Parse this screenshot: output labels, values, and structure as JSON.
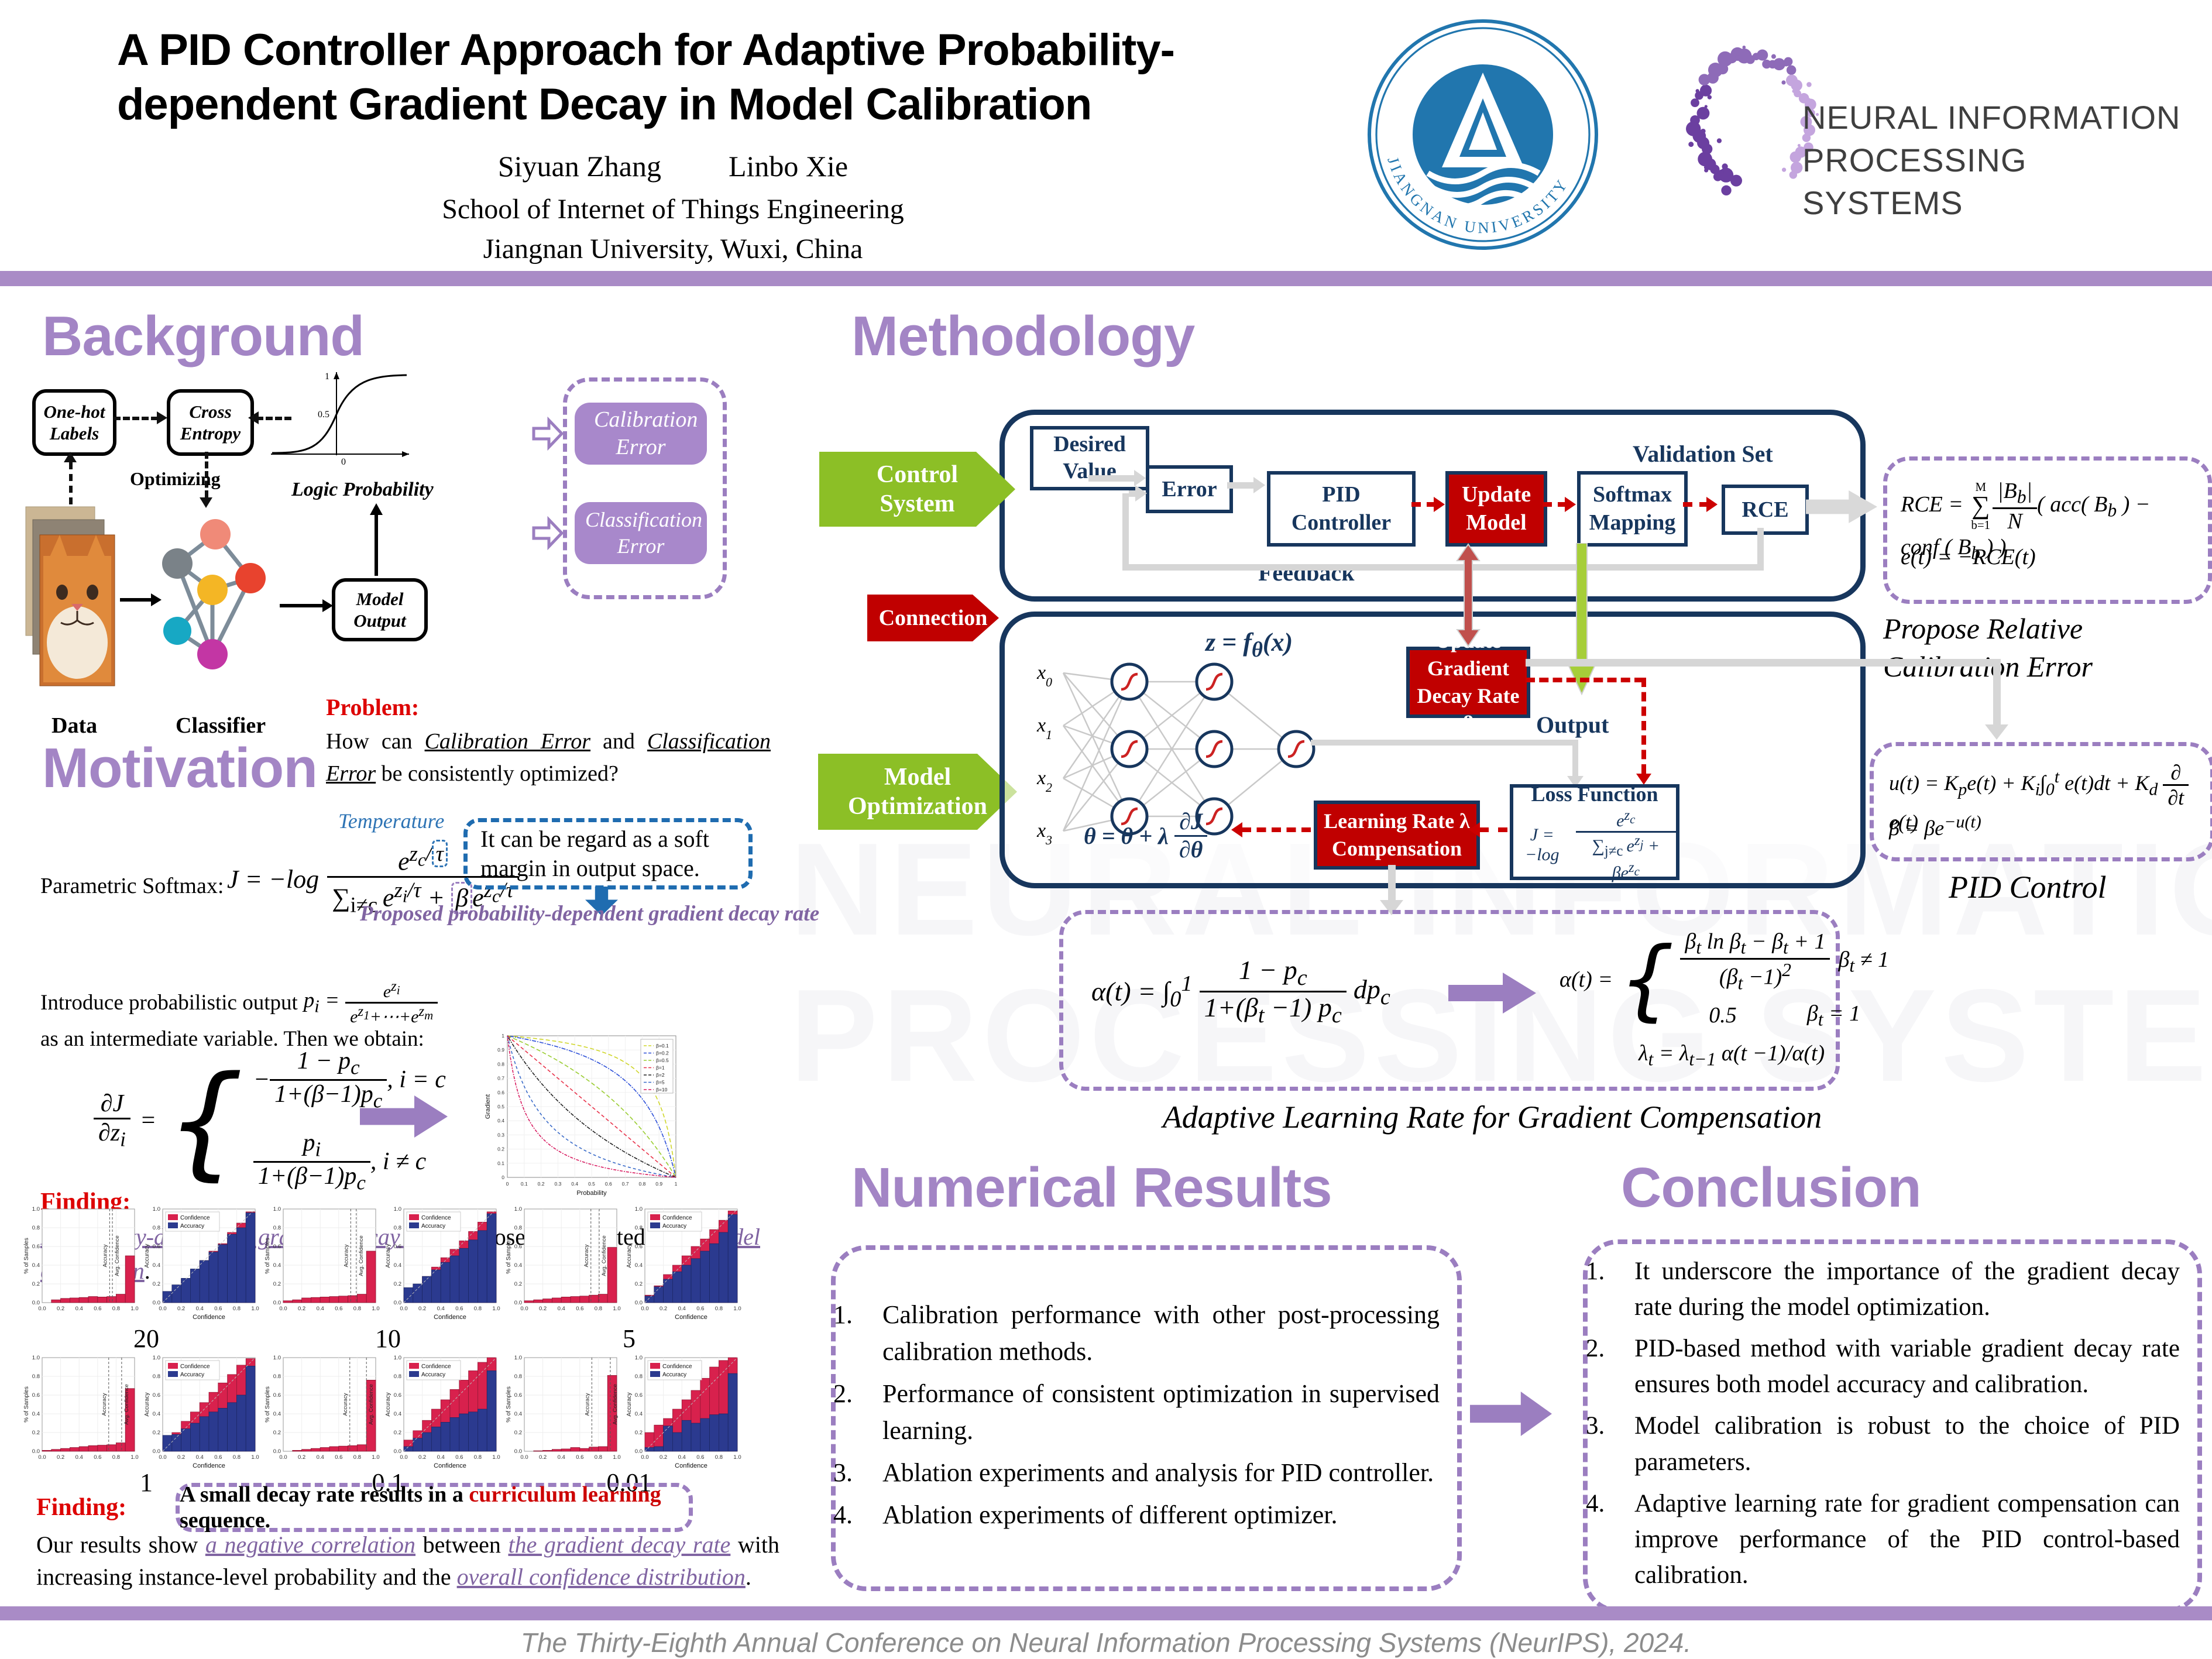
{
  "header": {
    "title_line1": "A PID Controller Approach for Adaptive Probability-",
    "title_line2": "dependent Gradient Decay in Model Calibration",
    "author1": "Siyuan Zhang",
    "author2": "Linbo Xie",
    "affiliation1": "School of Internet of Things Engineering",
    "affiliation2": "Jiangnan University, Wuxi, China",
    "jiangnan_logo_text": "JIANGNAN   UNIVERSITY",
    "neurips_line1": "NEURAL INFORMATION",
    "neurips_line2": "PROCESSING SYSTEMS",
    "accent_bar_color": "#A98BC6"
  },
  "sections": {
    "background": "Background",
    "motivation": "Motivation",
    "methodology": "Methodology",
    "results": "Numerical Results",
    "conclusion": "Conclusion"
  },
  "background": {
    "onehot": "One-hot Labels",
    "cross_entropy": "Cross Entropy",
    "optimizing": "Optimizing",
    "sigmoid_ticks": [
      "1",
      "0.5",
      "0"
    ],
    "logic_probability": "Logic Probability",
    "model_output": "Model Output",
    "data_label": "Data",
    "classifier_label": "Classifier",
    "calibration_error": "Calibration Error",
    "classification_error": "Classification Error",
    "problem_label": "Problem:",
    "problem_html": "How can <span class='purp-link' style='color:#000;text-decoration:underline'><i>Calibration Error</i></span> and <span style='text-decoration:underline'><i>Classification Error</i></span> be consistently optimized?"
  },
  "motivation": {
    "parametric_label": "Parametric  Softmax:",
    "softmax_lead_html": "J = &#8722;log",
    "softmax_num_html": "e<sup>z<sub>c</sub>/<span class='hl-blue'>&#964;</span></sup>",
    "softmax_den_html": "&#8721;<sub style='font-style:normal'>i&#8800;c</sub>&#8201;e<sup>z<sub>i</sub>/&#964;</sup> + <span class='hl-purple'>&#946;</span>e<sup>z<sub>c</sub>/&#964;</sup>",
    "temperature": "Temperature",
    "soft_margin_note": "It can be regard as a soft margin in output space.",
    "proposed_caption": "Proposed probability-dependent gradient decay rate",
    "intro_pre": "Introduce probabilistic output ",
    "intro_pi_html": "p<sub>i</sub> =",
    "intro_num_html": "e<sup>z<sub>i</sub></sup>",
    "intro_den_html": "e<sup>z<sub>1</sub></sup>+&#8943;+e<sup>z<sub>m</sub></sup>",
    "intro_post": " as an intermediate variable. Then we obtain:",
    "dj_num_html": "&#8706;J",
    "dj_den_html": "&#8706;z<sub>i</sub>",
    "case1_sign": "&#8722;",
    "case1_num_html": "1 &#8722; p<sub>c</sub>",
    "case1_den_html": "1+(&#946;&#8722;1)p<sub>c</sub>",
    "case1_cond_html": ", i = c",
    "case2_num_html": "p<sub>i</sub>",
    "case2_den_html": "1+(&#946;&#8722;1)p<sub>c</sub>",
    "case2_cond_html": ", i &#8800; c",
    "finding_label": "Finding:",
    "finding_html": "<span class='purp-link'>Probability-dependent gradient decay rate</span> is closely correlated with <span class='purp-link'>model calibration</span>.",
    "finding2_label": "Finding:",
    "finding2_box_html": "A small decay rate results in a <span style='color:#CC0000'>curriculum learning</span> sequence.",
    "finding2_line_html": "Our results show <span class='purp-link'>a negative correlation</span> between <span class='purp-link'>the gradient decay rate</span> with increasing instance-level probability and the <span class='purp-link'>overall confidence distribution</span>."
  },
  "methodology": {
    "control_system_l1": "Control",
    "control_system_l2": "System",
    "connection": "Connection",
    "model_opt_l1": "Model",
    "model_opt_l2": "Optimization",
    "desired_value": "Desired Value",
    "error": "Error",
    "pid_controller": "PID Controller",
    "update_model": "Update Model",
    "softmax_mapping": "Softmax Mapping",
    "rce": "RCE",
    "validation_set": "Validation Set",
    "feedback": "Feedback",
    "z_eq_html": "z = f<sub>&#952;</sub>(x)",
    "inputs_html": [
      "x<sub>0</sub>",
      "x<sub>1</sub>",
      "x<sub>2</sub>",
      "x<sub>3</sub>"
    ],
    "update_gradient_l1": "Update Gradient",
    "update_gradient_l2_html": "Decay Rate &#946;",
    "output": "Output",
    "learning_rate_l1_html": "Learning Rate &#955;",
    "learning_rate_l2": "Compensation",
    "loss_function": "Loss Function",
    "loss_lead_html": "J = &#8722;log",
    "loss_num_html": "e<sup>z<sub>c</sub></sup>",
    "loss_den_html": "&#8721;<sub style='font-style:normal'>j&#8800;c</sub>&#8201;e<sup>z<sub>j</sub></sup> + &#946;e<sup>z<sub>c</sub></sup>",
    "theta_eq_lead_html": "&#952; = &#952; + &#955;",
    "theta_num_html": "&#8706;J",
    "theta_den_html": "&#8706;&#952;",
    "rce_formula_html": "RCE = <span class='ifrac' style='font-size:0.55em;font-style:normal;vertical-align:middle;line-height:1'><span style='padding:0 4px'>M</span><span style='font-size:2.1em'>&#8721;</span><span style='padding:0 4px'>b=1</span></span><span class='ifrac'><span class='n'>|B<sub>b</sub>|</span><span class='d'>N</span></span>( acc( B<sub>b</sub> ) &#8722; conf ( B<sub>b</sub> ) )",
    "e_formula_html": "e(t) = &#8722;RCE(t)",
    "propose_caption": "Propose Relative Calibration Error",
    "pid_u_html": "u(t) = K<sub>p</sub>e(t) + K<sub>i</sub>&#8747;<sub>0</sub><sup>t</sup> e(t)dt + K<sub>d</sub> <span class='ifrac'><span class='n'>&#8706;</span><span class='d'>&#8706;t</span></span> e(t)",
    "pid_beta_html": "&#946; = &#946;e<sup>&#8722;u(t)</sup>",
    "pid_control_caption": "PID Control",
    "alpha_lead_html": "&#945;(t) = &#8747;<sub>0</sub><sup>1</sup>",
    "alpha_num_html": "1 &#8722; p<sub>c</sub>",
    "alpha_den_html": "1+(&#946;<sub>t</sub> &#8722;1) p<sub>c</sub>",
    "alpha_tail_html": "dp<sub>c</sub>",
    "alpha2_lead_html": "&#945;(t) =",
    "alpha2_c1_num_html": "&#946;<sub>t</sub> ln &#946;<sub>t</sub> &#8722; &#946;<sub>t</sub> + 1",
    "alpha2_c1_den_html": "(&#946;<sub>t</sub> &#8722;1)<sup>2</sup>",
    "alpha2_c1_cond_html": "&#946;<sub>t</sub> &#8800; 1",
    "alpha2_c2_html": "0.5",
    "alpha2_c2_cond_html": "&#946;<sub>t</sub> = 1",
    "lambda_html": "&#955;<sub>t</sub> = &#955;<sub>t&#8722;1</sub> &#945;(t &#8722;1)/&#945;(t)",
    "adaptive_caption": "Adaptive Learning Rate  for Gradient Compensation"
  },
  "results": {
    "items": [
      "Calibration performance with other post-processing calibration methods.",
      "Performance of consistent optimization in supervised learning.",
      "Ablation experiments and analysis for PID controller.",
      "Ablation experiments of different optimizer."
    ]
  },
  "conclusion": {
    "items": [
      "It underscore the importance of the gradient decay rate during the model optimization.",
      "PID-based method with variable gradient decay rate ensures both model accuracy and calibration.",
      "Model calibration is robust to the choice of PID parameters.",
      "Adaptive learning rate for gradient compensation can improve performance of the PID control-based calibration."
    ]
  },
  "footer": {
    "text": "The Thirty-Eighth Annual Conference on Neural Information Processing Systems (NeurIPS), 2024."
  },
  "chart_data": {
    "gradient_decay_plot": {
      "type": "line",
      "xlabel": "Probability",
      "ylabel": "Gradient",
      "xlim": [
        0,
        1
      ],
      "ylim": [
        0,
        1
      ],
      "formula": "g(p) = (1-p)/(1+(beta-1)p)",
      "betas": [
        0.1,
        0.2,
        0.5,
        1,
        2,
        5,
        10
      ],
      "legend": [
        "β=0.1",
        "β=0.2",
        "β=0.5",
        "β=1",
        "β=2",
        "β=5",
        "β=10"
      ],
      "colors": [
        "#cfd62a",
        "#2c4fd8",
        "#9acd32",
        "#e8324a",
        "#222222",
        "#3a6bc9",
        "#d81b60"
      ],
      "legend_position": "top-right",
      "grid": true
    },
    "calibration_pairs": [
      {
        "decay_rate": "20",
        "histogram": {
          "ylabel": "% of Samples",
          "acc_label": "Accuracy",
          "conf_label": "Avg. Confidence",
          "values": [
            0.0,
            0.03,
            0.045,
            0.05,
            0.055,
            0.065,
            0.06,
            0.065,
            0.09,
            0.5
          ],
          "accuracy_line": 0.73,
          "avg_confidence_line": 0.76
        },
        "reliability": {
          "xlabel": "Confidence",
          "ylabel": "Accuracy",
          "legend": [
            "Confidence",
            "Accuracy"
          ],
          "confidence": [
            0.05,
            0.15,
            0.25,
            0.35,
            0.45,
            0.55,
            0.63,
            0.75,
            0.85,
            0.97
          ],
          "accuracy": [
            0.12,
            0.19,
            0.26,
            0.36,
            0.45,
            0.54,
            0.62,
            0.73,
            0.8,
            0.96
          ]
        }
      },
      {
        "decay_rate": "10",
        "histogram": {
          "ylabel": "% of Samples",
          "acc_label": "Accuracy",
          "conf_label": "Avg. Confidence",
          "values": [
            0.02,
            0.03,
            0.05,
            0.055,
            0.06,
            0.065,
            0.07,
            0.075,
            0.09,
            0.55
          ],
          "accuracy_line": 0.73,
          "avg_confidence_line": 0.79
        },
        "reliability": {
          "xlabel": "Confidence",
          "ylabel": "Accuracy",
          "legend": [
            "Confidence",
            "Accuracy"
          ],
          "confidence": [
            0.08,
            0.18,
            0.28,
            0.38,
            0.48,
            0.57,
            0.66,
            0.76,
            0.86,
            0.97
          ],
          "accuracy": [
            0.16,
            0.2,
            0.28,
            0.35,
            0.43,
            0.5,
            0.58,
            0.67,
            0.77,
            0.95
          ]
        }
      },
      {
        "decay_rate": "5",
        "histogram": {
          "ylabel": "% of Samples",
          "acc_label": "Accuracy",
          "conf_label": "Avg. Confidence",
          "values": [
            0.02,
            0.03,
            0.04,
            0.05,
            0.06,
            0.065,
            0.07,
            0.08,
            0.09,
            0.59
          ],
          "accuracy_line": 0.72,
          "avg_confidence_line": 0.81
        },
        "reliability": {
          "xlabel": "Confidence",
          "ylabel": "Accuracy",
          "legend": [
            "Confidence",
            "Accuracy"
          ],
          "confidence": [
            0.08,
            0.18,
            0.3,
            0.4,
            0.5,
            0.6,
            0.68,
            0.78,
            0.88,
            0.98
          ],
          "accuracy": [
            0.07,
            0.17,
            0.25,
            0.33,
            0.4,
            0.47,
            0.55,
            0.63,
            0.75,
            0.94
          ]
        }
      },
      {
        "decay_rate": "1",
        "histogram": {
          "ylabel": "% of Samples",
          "acc_label": "Accuracy",
          "conf_label": "Avg. Confidence",
          "values": [
            0.01,
            0.02,
            0.03,
            0.04,
            0.05,
            0.06,
            0.065,
            0.07,
            0.09,
            0.67
          ],
          "accuracy_line": 0.72,
          "avg_confidence_line": 0.86
        },
        "reliability": {
          "xlabel": "Confidence",
          "ylabel": "Accuracy",
          "legend": [
            "Confidence",
            "Accuracy"
          ],
          "confidence": [
            0.1,
            0.2,
            0.32,
            0.42,
            0.52,
            0.63,
            0.73,
            0.82,
            0.92,
            0.99
          ],
          "accuracy": [
            0.17,
            0.18,
            0.24,
            0.3,
            0.37,
            0.42,
            0.46,
            0.52,
            0.6,
            0.91
          ]
        }
      },
      {
        "decay_rate": "0.1",
        "histogram": {
          "ylabel": "% of Samples",
          "acc_label": "Accuracy",
          "conf_label": "Avg. Confidence",
          "values": [
            0.0,
            0.01,
            0.02,
            0.03,
            0.04,
            0.05,
            0.055,
            0.06,
            0.07,
            0.76
          ],
          "accuracy_line": 0.72,
          "avg_confidence_line": 0.9
        },
        "reliability": {
          "xlabel": "Confidence",
          "ylabel": "Accuracy",
          "legend": [
            "Confidence",
            "Accuracy"
          ],
          "confidence": [
            0.12,
            0.22,
            0.33,
            0.45,
            0.55,
            0.66,
            0.76,
            0.86,
            0.95,
            1.0
          ],
          "accuracy": [
            0.05,
            0.14,
            0.2,
            0.26,
            0.31,
            0.36,
            0.4,
            0.42,
            0.45,
            0.86
          ]
        }
      },
      {
        "decay_rate": "0.01",
        "histogram": {
          "ylabel": "% of Samples",
          "acc_label": "Accuracy",
          "conf_label": "Avg. Confidence",
          "values": [
            0.0,
            0.005,
            0.01,
            0.02,
            0.025,
            0.04,
            0.03,
            0.045,
            0.05,
            0.81
          ],
          "accuracy_line": 0.73,
          "avg_confidence_line": 0.93
        },
        "reliability": {
          "xlabel": "Confidence",
          "ylabel": "Accuracy",
          "legend": [
            "Confidence",
            "Accuracy"
          ],
          "confidence": [
            0.2,
            0.28,
            0.35,
            0.45,
            0.55,
            0.65,
            0.78,
            0.9,
            0.97,
            1.0
          ],
          "accuracy": [
            0.04,
            0.05,
            0.27,
            0.2,
            0.33,
            0.3,
            0.35,
            0.39,
            0.4,
            0.83
          ]
        }
      }
    ],
    "sigmoid_plot": {
      "type": "line",
      "title": "Logic Probability",
      "yticks": [
        0,
        0.5,
        1
      ],
      "description": "logistic curve"
    }
  }
}
